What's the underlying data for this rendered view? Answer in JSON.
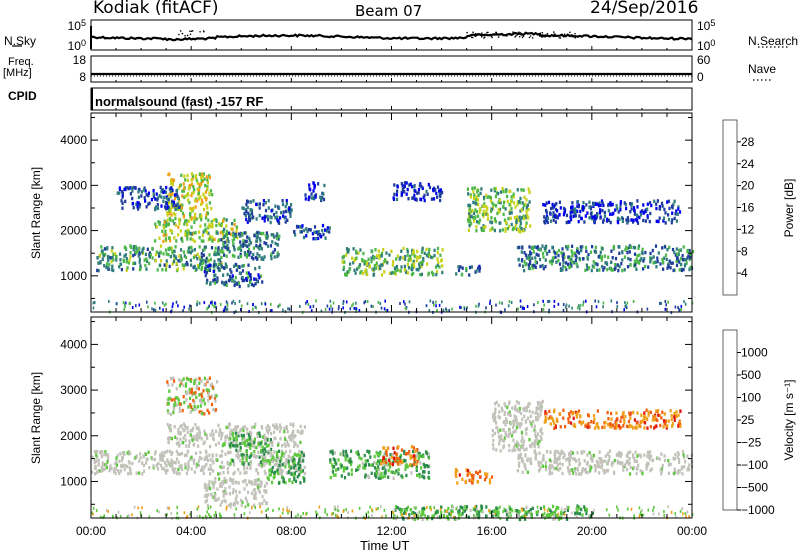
{
  "header": {
    "station": "Kodiak (fitACF)",
    "beam": "Beam 07",
    "date": "24/Sep/2016"
  },
  "strip_panels": {
    "nsky": {
      "label": "N.Sky",
      "ticks": [
        "10^5",
        "10^0"
      ]
    },
    "nsearch": {
      "label": "N.Search",
      "ticks": [
        "10^5",
        "10^0"
      ]
    },
    "freq": {
      "label_line1": "Freq.",
      "label_line2": "[MHz]",
      "ticks": [
        "18",
        "8"
      ]
    },
    "nave": {
      "label": "Nave",
      "ticks": [
        "60",
        "0"
      ]
    },
    "cpid": {
      "label": "CPID",
      "value": "normalsound (fast) -157 RF"
    }
  },
  "x_axis": {
    "label": "Time UT",
    "ticks": [
      "00:00",
      "04:00",
      "08:00",
      "12:00",
      "16:00",
      "20:00",
      "00:00"
    ],
    "range_hours": [
      0,
      24
    ]
  },
  "chart_data": [
    {
      "type": "heatmap",
      "title": "Power",
      "xlabel": "Time UT",
      "ylabel": "Slant Range [km]",
      "ylim": [
        200,
        4600
      ],
      "yticks": [
        1000,
        2000,
        3000,
        4000
      ],
      "colorbar": {
        "label": "Power [dB]",
        "ticks": [
          "28",
          "24",
          "20",
          "16",
          "12",
          "8",
          "4"
        ],
        "colors": [
          "#0000ee",
          "#1e3c9c",
          "#2f7d7c",
          "#4cb848",
          "#c8d21c",
          "#f0a018",
          "#f06010",
          "#e01010"
        ]
      },
      "regions": [
        {
          "t": [
            0.2,
            5.5
          ],
          "r": [
            1150,
            1700
          ],
          "db": 14
        },
        {
          "t": [
            2.5,
            5.8
          ],
          "r": [
            1800,
            2300
          ],
          "db": 18
        },
        {
          "t": [
            3.0,
            4.8
          ],
          "r": [
            2300,
            3300
          ],
          "db": 20
        },
        {
          "t": [
            1.0,
            3.5
          ],
          "r": [
            2500,
            3000
          ],
          "db": 8
        },
        {
          "t": [
            5.0,
            7.5
          ],
          "r": [
            1400,
            2000
          ],
          "db": 12
        },
        {
          "t": [
            4.5,
            6.8
          ],
          "r": [
            800,
            1300
          ],
          "db": 10
        },
        {
          "t": [
            6.0,
            8.0
          ],
          "r": [
            2200,
            2700
          ],
          "db": 9
        },
        {
          "t": [
            8.0,
            9.5
          ],
          "r": [
            1850,
            2150
          ],
          "db": 8
        },
        {
          "t": [
            8.5,
            9.3
          ],
          "r": [
            2700,
            3100
          ],
          "db": 6
        },
        {
          "t": [
            10.0,
            14.0
          ],
          "r": [
            1050,
            1650
          ],
          "db": 16
        },
        {
          "t": [
            12.0,
            14.0
          ],
          "r": [
            2700,
            3100
          ],
          "db": 6
        },
        {
          "t": [
            15.0,
            17.5
          ],
          "r": [
            2000,
            3000
          ],
          "db": 16
        },
        {
          "t": [
            17.0,
            24.0
          ],
          "r": [
            1150,
            1700
          ],
          "db": 12
        },
        {
          "t": [
            18.0,
            23.5
          ],
          "r": [
            2200,
            2700
          ],
          "db": 7
        },
        {
          "t": [
            14.5,
            15.5
          ],
          "r": [
            1050,
            1250
          ],
          "db": 10
        }
      ]
    },
    {
      "type": "heatmap",
      "title": "Velocity",
      "xlabel": "Time UT",
      "ylabel": "Slant Range [km]",
      "ylim": [
        200,
        4600
      ],
      "yticks": [
        1000,
        2000,
        3000,
        4000
      ],
      "colorbar": {
        "label": "Velocity [m s⁻¹]",
        "ticks": [
          "1000",
          "500",
          "100",
          "25",
          "−25",
          "−100",
          "−500",
          "−1000"
        ],
        "colors": [
          "#2a4fb8",
          "#3a63c8",
          "#2c8c4c",
          "#5cc83c",
          "#c0c0b8",
          "#f0a018",
          "#f06010",
          "#e01010"
        ]
      },
      "regions": [
        {
          "t": [
            0.0,
            8.5
          ],
          "r": [
            1200,
            1700
          ],
          "v": "gs"
        },
        {
          "t": [
            3.0,
            8.5
          ],
          "r": [
            1800,
            2300
          ],
          "v": "gs"
        },
        {
          "t": [
            17.0,
            24.0
          ],
          "r": [
            1200,
            1700
          ],
          "v": "gs"
        },
        {
          "t": [
            16.0,
            18.0
          ],
          "r": [
            1700,
            2800
          ],
          "v": "gs"
        },
        {
          "t": [
            7.0,
            8.5
          ],
          "r": [
            1000,
            1700
          ],
          "v": "pos"
        },
        {
          "t": [
            9.5,
            13.5
          ],
          "r": [
            1100,
            1700
          ],
          "v": "pos"
        },
        {
          "t": [
            3.0,
            5.0
          ],
          "r": [
            2500,
            3300
          ],
          "v": "mixed"
        },
        {
          "t": [
            5.5,
            7.2
          ],
          "r": [
            1400,
            2100
          ],
          "v": "pos"
        },
        {
          "t": [
            11.5,
            13.0
          ],
          "r": [
            1400,
            1800
          ],
          "v": "neg"
        },
        {
          "t": [
            14.5,
            16.0
          ],
          "r": [
            1000,
            1300
          ],
          "v": "neg"
        },
        {
          "t": [
            18.0,
            23.5
          ],
          "r": [
            2200,
            2600
          ],
          "v": "neg"
        },
        {
          "t": [
            4.5,
            7.0
          ],
          "r": [
            500,
            1100
          ],
          "v": "gs"
        },
        {
          "t": [
            12.0,
            20.0
          ],
          "r": [
            200,
            500
          ],
          "v": "pos"
        }
      ]
    }
  ]
}
